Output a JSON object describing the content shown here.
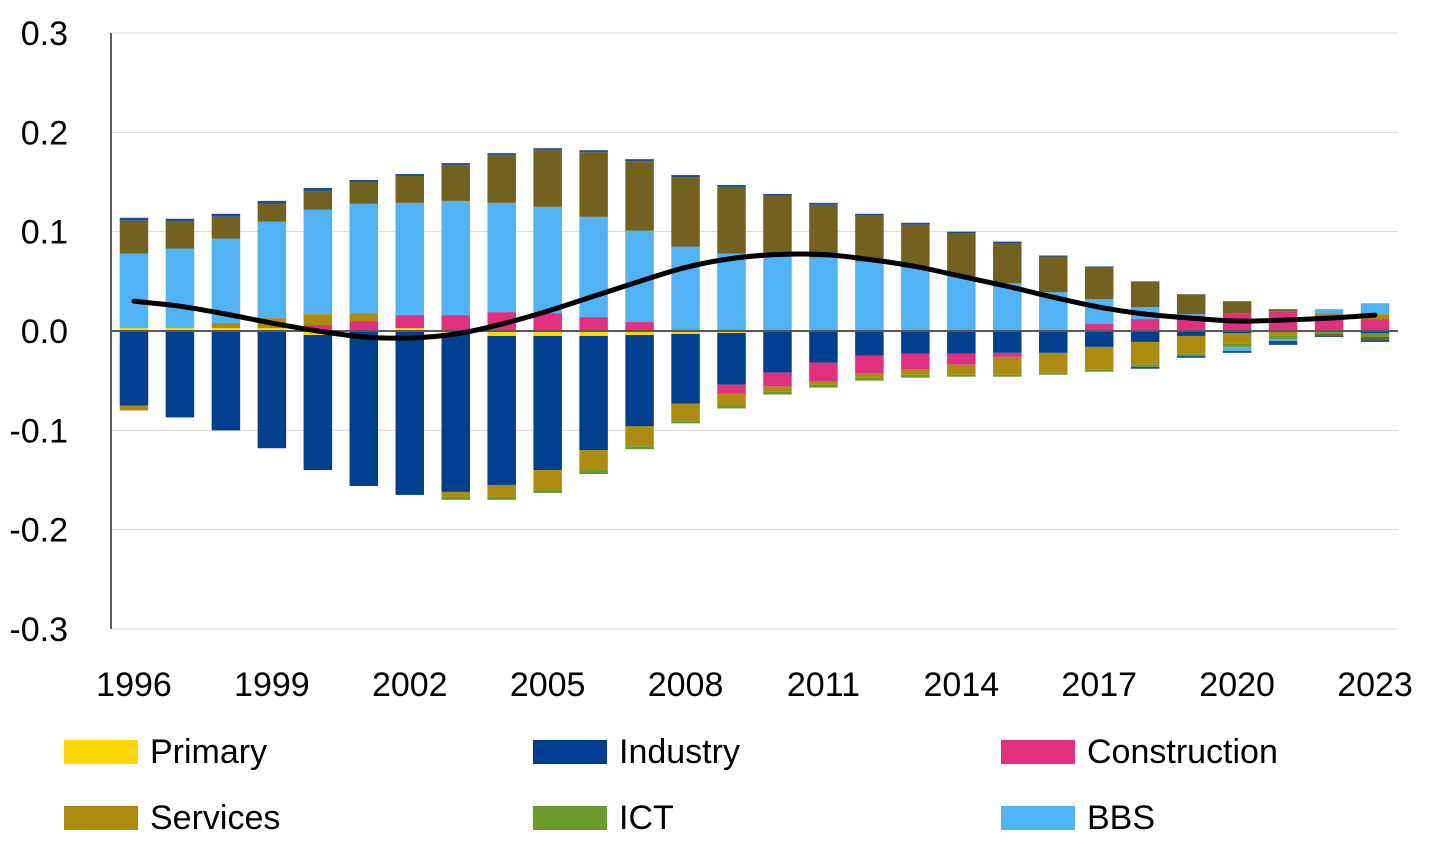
{
  "chart_data": {
    "type": "bar",
    "stacked": true,
    "categories": [
      "1996",
      "1997",
      "1998",
      "1999",
      "2000",
      "2001",
      "2002",
      "2003",
      "2004",
      "2005",
      "2006",
      "2007",
      "2008",
      "2009",
      "2010",
      "2011",
      "2012",
      "2013",
      "2014",
      "2015",
      "2016",
      "2017",
      "2018",
      "2019",
      "2020",
      "2021",
      "2022",
      "2023"
    ],
    "x_tick_labels": [
      "1996",
      "1999",
      "2002",
      "2005",
      "2008",
      "2011",
      "2014",
      "2017",
      "2020",
      "2023"
    ],
    "y_tick_labels": [
      "0.3",
      "0.2",
      "0.1",
      "0.0",
      "-0.1",
      "-0.2",
      "-0.3"
    ],
    "ylim": [
      -0.3,
      0.3
    ],
    "yticks": [
      0.3,
      0.2,
      0.1,
      0.0,
      -0.1,
      -0.2,
      -0.3
    ],
    "grid": true,
    "legend_position": "bottom",
    "series": [
      {
        "name": "Primary",
        "color": "#FFD700",
        "values": [
          0.003,
          0.003,
          0.003,
          0.003,
          -0.004,
          -0.001,
          0.003,
          -0.002,
          -0.005,
          -0.005,
          -0.005,
          -0.004,
          -0.003,
          -0.002,
          0,
          0,
          0,
          0,
          0,
          0,
          0,
          0,
          0,
          0,
          0,
          0,
          0,
          0
        ]
      },
      {
        "name": "Industry",
        "color": "#003F8F",
        "values": [
          -0.075,
          -0.087,
          -0.1,
          -0.118,
          -0.136,
          -0.155,
          -0.165,
          -0.16,
          -0.15,
          -0.135,
          -0.115,
          -0.092,
          -0.07,
          -0.052,
          -0.042,
          -0.032,
          -0.025,
          -0.023,
          -0.023,
          -0.022,
          -0.022,
          -0.016,
          -0.011,
          -0.005,
          -0.002,
          -0.001,
          0,
          -0.002
        ]
      },
      {
        "name": "Construction",
        "color": "#E0307F",
        "values": [
          0,
          0,
          0,
          0,
          0.006,
          0.01,
          0.013,
          0.016,
          0.019,
          0.018,
          0.014,
          0.009,
          0,
          -0.009,
          -0.014,
          -0.019,
          -0.018,
          -0.016,
          -0.011,
          -0.004,
          0.0,
          0.007,
          0.012,
          0.015,
          0.018,
          0.02,
          0.016,
          0.012
        ]
      },
      {
        "name": "Services",
        "color": "#AD8B0F",
        "values": [
          -0.005,
          0,
          0.005,
          0.01,
          0.011,
          0.008,
          0,
          -0.005,
          -0.012,
          -0.02,
          -0.02,
          -0.02,
          -0.017,
          -0.012,
          -0.005,
          -0.003,
          -0.004,
          -0.005,
          -0.01,
          -0.018,
          -0.02,
          -0.023,
          -0.023,
          -0.018,
          -0.011,
          -0.004,
          0.002,
          0.005
        ]
      },
      {
        "name": "ICT",
        "color": "#6A9A29",
        "values": [
          0,
          0,
          0,
          0,
          0,
          0,
          0,
          -0.003,
          -0.003,
          -0.003,
          -0.004,
          -0.003,
          -0.003,
          -0.003,
          -0.003,
          -0.003,
          -0.003,
          -0.003,
          -0.002,
          -0.002,
          -0.002,
          -0.002,
          -0.002,
          -0.002,
          -0.003,
          -0.003,
          -0.003,
          -0.004
        ]
      },
      {
        "name": "BBS",
        "color": "#4FB3F6",
        "values": [
          0.075,
          0.08,
          0.085,
          0.097,
          0.105,
          0.11,
          0.113,
          0.115,
          0.11,
          0.107,
          0.101,
          0.092,
          0.085,
          0.078,
          0.075,
          0.074,
          0.07,
          0.064,
          0.055,
          0.048,
          0.039,
          0.025,
          0.012,
          0.002,
          -0.004,
          -0.002,
          0.004,
          0.011
        ]
      },
      {
        "name": "",
        "color": "#73621F",
        "values": [
          0.033,
          0.027,
          0.022,
          0.018,
          0.019,
          0.022,
          0.027,
          0.036,
          0.048,
          0.057,
          0.065,
          0.07,
          0.07,
          0.067,
          0.061,
          0.053,
          0.046,
          0.043,
          0.043,
          0.04,
          0.036,
          0.032,
          0.026,
          0.02,
          0.012,
          0.002,
          -0.002,
          -0.003
        ]
      },
      {
        "name": "",
        "color": "#1F4E8C",
        "values": [
          0.003,
          0.003,
          0.003,
          0.003,
          0.003,
          0.002,
          0.002,
          0.002,
          0.002,
          0.002,
          0.002,
          0.002,
          0.002,
          0.002,
          0.002,
          0.002,
          0.002,
          0.002,
          0.002,
          0.002,
          0.001,
          0.001,
          -0.002,
          -0.002,
          -0.002,
          -0.004,
          -0.001,
          -0.002
        ]
      }
    ],
    "line": {
      "name": "",
      "color": "#000000",
      "values": [
        0.03,
        0.025,
        0.017,
        0.008,
        0.0,
        -0.006,
        -0.007,
        -0.003,
        0.007,
        0.02,
        0.035,
        0.05,
        0.064,
        0.073,
        0.077,
        0.077,
        0.072,
        0.065,
        0.055,
        0.045,
        0.034,
        0.024,
        0.017,
        0.013,
        0.01,
        0.011,
        0.013,
        0.016
      ]
    }
  },
  "legend": {
    "items": [
      {
        "label": "Primary",
        "color": "#FFD700"
      },
      {
        "label": "Industry",
        "color": "#003F8F"
      },
      {
        "label": "Construction",
        "color": "#E0307F"
      },
      {
        "label": "Services",
        "color": "#AD8B0F"
      },
      {
        "label": "ICT",
        "color": "#6A9A29"
      },
      {
        "label": "BBS",
        "color": "#4FB3F6"
      }
    ]
  }
}
